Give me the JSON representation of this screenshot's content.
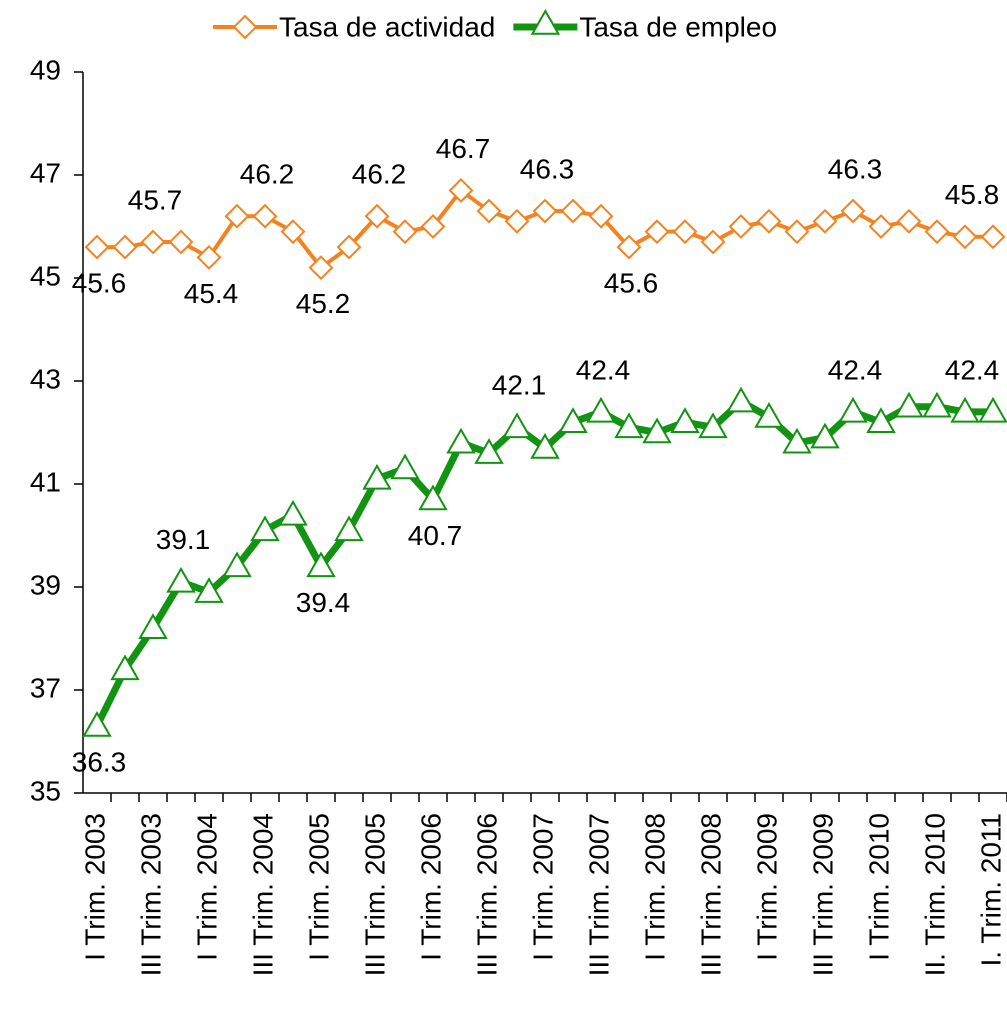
{
  "chart_data": {
    "type": "line",
    "categories": [
      "I Trim. 2003",
      null,
      "III Trim. 2003",
      null,
      "I Trim. 2004",
      null,
      "III Trim. 2004",
      null,
      "I Trim. 2005",
      null,
      "III Trim. 2005",
      null,
      "I Trim. 2006",
      null,
      "III Trim. 2006",
      null,
      "I Trim. 2007",
      null,
      "III Trim. 2007",
      null,
      "I Trim. 2008",
      null,
      "III Trim. 2008",
      null,
      "I Trim. 2009",
      null,
      "III Trim. 2009",
      null,
      "I Trim. 2010",
      null,
      "II. Trim. 2010",
      null,
      "I. Trim. 2011"
    ],
    "series": [
      {
        "name": "Tasa de actividad",
        "color": "#f4821f",
        "marker": "diamond",
        "values": [
          45.6,
          45.6,
          45.7,
          45.7,
          45.4,
          46.2,
          46.2,
          45.9,
          45.2,
          45.6,
          46.2,
          45.9,
          46.0,
          46.7,
          46.3,
          46.1,
          46.3,
          46.3,
          46.2,
          45.6,
          45.9,
          45.9,
          45.7,
          46.0,
          46.1,
          45.9,
          46.1,
          46.3,
          46.0,
          46.1,
          45.9,
          45.8,
          45.8
        ],
        "value_labels": [
          "45.6",
          null,
          "45.7",
          null,
          "45.4",
          null,
          "46.2",
          null,
          "45.2",
          null,
          "46.2",
          null,
          null,
          "46.7",
          null,
          null,
          "46.3",
          null,
          null,
          "45.6",
          null,
          null,
          null,
          null,
          null,
          null,
          null,
          "46.3",
          null,
          null,
          null,
          null,
          "45.8"
        ]
      },
      {
        "name": "Tasa de empleo",
        "color": "#129412",
        "marker": "triangle",
        "values": [
          36.3,
          37.4,
          38.2,
          39.1,
          38.9,
          39.4,
          40.1,
          40.4,
          39.4,
          40.1,
          41.1,
          41.3,
          40.7,
          41.8,
          41.6,
          42.1,
          41.7,
          42.2,
          42.4,
          42.1,
          42.0,
          42.2,
          42.1,
          42.6,
          42.3,
          41.8,
          41.9,
          42.4,
          42.2,
          42.5,
          42.5,
          42.4,
          42.4
        ],
        "value_labels": [
          "36.3",
          null,
          null,
          "39.1",
          null,
          null,
          null,
          null,
          "39.4",
          null,
          null,
          null,
          "40.7",
          null,
          null,
          "42.1",
          null,
          null,
          "42.4",
          null,
          null,
          null,
          null,
          null,
          null,
          null,
          null,
          "42.4",
          null,
          null,
          null,
          null,
          "42.4"
        ]
      }
    ],
    "ylim": [
      35,
      49
    ],
    "yticks": [
      35,
      37,
      39,
      41,
      43,
      45,
      47,
      49
    ],
    "legend": "top"
  }
}
